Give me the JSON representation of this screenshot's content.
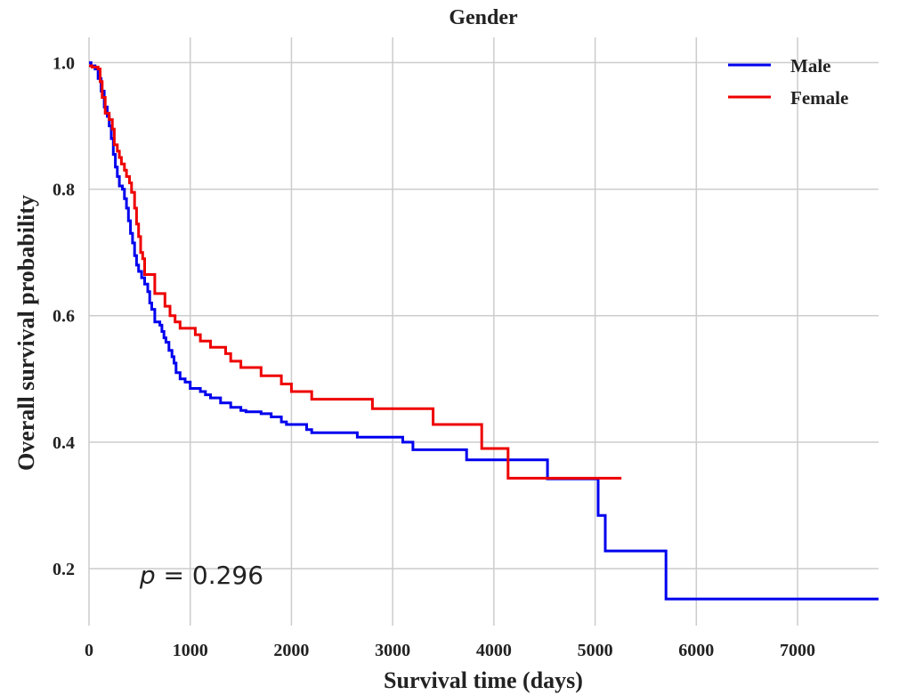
{
  "chart_data": {
    "type": "line",
    "title": "Gender",
    "xlabel": "Survival time (days)",
    "ylabel": "Overall survival probability",
    "xlim": [
      0,
      7800
    ],
    "ylim": [
      0.11,
      1.04
    ],
    "xticks": [
      0,
      1000,
      2000,
      3000,
      4000,
      5000,
      6000,
      7000
    ],
    "xtick_labels": [
      "0",
      "1000",
      "2000",
      "3000",
      "4000",
      "5000",
      "6000",
      "7000"
    ],
    "yticks": [
      0.2,
      0.4,
      0.6,
      0.8,
      1.0
    ],
    "ytick_labels": [
      "0.2",
      "0.4",
      "0.6",
      "0.8",
      "1.0"
    ],
    "grid": true,
    "legend_position": "top-right",
    "annotation": {
      "italic": "p",
      "rest": " = 0.296",
      "x": 500,
      "y": 0.19
    },
    "series": [
      {
        "name": "Male",
        "color": "#0000ee",
        "step": true,
        "points": [
          [
            0,
            1.0
          ],
          [
            20,
            0.995
          ],
          [
            60,
            0.99
          ],
          [
            90,
            0.975
          ],
          [
            120,
            0.955
          ],
          [
            150,
            0.93
          ],
          [
            180,
            0.915
          ],
          [
            200,
            0.9
          ],
          [
            220,
            0.88
          ],
          [
            240,
            0.855
          ],
          [
            260,
            0.835
          ],
          [
            280,
            0.82
          ],
          [
            300,
            0.805
          ],
          [
            330,
            0.8
          ],
          [
            350,
            0.785
          ],
          [
            370,
            0.77
          ],
          [
            390,
            0.75
          ],
          [
            410,
            0.73
          ],
          [
            430,
            0.715
          ],
          [
            450,
            0.695
          ],
          [
            470,
            0.68
          ],
          [
            490,
            0.67
          ],
          [
            520,
            0.66
          ],
          [
            550,
            0.65
          ],
          [
            580,
            0.638
          ],
          [
            600,
            0.62
          ],
          [
            620,
            0.61
          ],
          [
            650,
            0.59
          ],
          [
            700,
            0.585
          ],
          [
            720,
            0.575
          ],
          [
            740,
            0.565
          ],
          [
            760,
            0.558
          ],
          [
            790,
            0.545
          ],
          [
            820,
            0.535
          ],
          [
            840,
            0.525
          ],
          [
            860,
            0.51
          ],
          [
            900,
            0.5
          ],
          [
            950,
            0.495
          ],
          [
            1000,
            0.485
          ],
          [
            1100,
            0.48
          ],
          [
            1150,
            0.475
          ],
          [
            1200,
            0.47
          ],
          [
            1300,
            0.462
          ],
          [
            1400,
            0.455
          ],
          [
            1500,
            0.45
          ],
          [
            1550,
            0.448
          ],
          [
            1700,
            0.445
          ],
          [
            1800,
            0.44
          ],
          [
            1900,
            0.432
          ],
          [
            1950,
            0.428
          ],
          [
            2150,
            0.42
          ],
          [
            2200,
            0.415
          ],
          [
            2650,
            0.408
          ],
          [
            3100,
            0.4
          ],
          [
            3200,
            0.388
          ],
          [
            3730,
            0.372
          ],
          [
            4530,
            0.342
          ],
          [
            5030,
            0.284
          ],
          [
            5100,
            0.228
          ],
          [
            5700,
            0.152
          ],
          [
            7800,
            0.152
          ]
        ]
      },
      {
        "name": "Female",
        "color": "#ee0000",
        "step": true,
        "points": [
          [
            0,
            0.995
          ],
          [
            30,
            0.993
          ],
          [
            90,
            0.99
          ],
          [
            110,
            0.97
          ],
          [
            130,
            0.945
          ],
          [
            160,
            0.92
          ],
          [
            200,
            0.91
          ],
          [
            230,
            0.895
          ],
          [
            250,
            0.87
          ],
          [
            280,
            0.86
          ],
          [
            300,
            0.85
          ],
          [
            320,
            0.84
          ],
          [
            350,
            0.83
          ],
          [
            370,
            0.82
          ],
          [
            400,
            0.81
          ],
          [
            420,
            0.795
          ],
          [
            450,
            0.77
          ],
          [
            470,
            0.745
          ],
          [
            490,
            0.725
          ],
          [
            510,
            0.7
          ],
          [
            530,
            0.69
          ],
          [
            550,
            0.665
          ],
          [
            650,
            0.635
          ],
          [
            750,
            0.615
          ],
          [
            800,
            0.6
          ],
          [
            850,
            0.59
          ],
          [
            900,
            0.58
          ],
          [
            1050,
            0.57
          ],
          [
            1100,
            0.56
          ],
          [
            1200,
            0.55
          ],
          [
            1350,
            0.54
          ],
          [
            1400,
            0.528
          ],
          [
            1500,
            0.518
          ],
          [
            1700,
            0.505
          ],
          [
            1900,
            0.492
          ],
          [
            2000,
            0.48
          ],
          [
            2200,
            0.468
          ],
          [
            2800,
            0.453
          ],
          [
            3400,
            0.428
          ],
          [
            3880,
            0.39
          ],
          [
            4140,
            0.343
          ],
          [
            5260,
            0.343
          ]
        ]
      }
    ]
  }
}
